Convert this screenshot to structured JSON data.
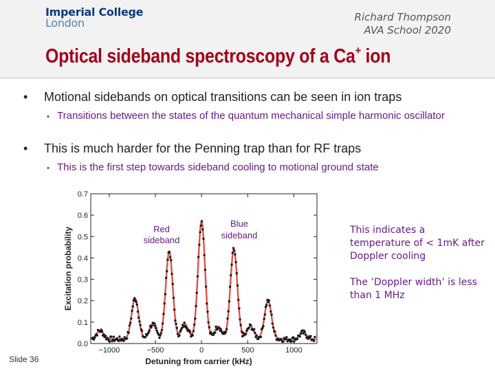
{
  "header": {
    "logo_line1": "Imperial College",
    "logo_line2": "London",
    "author": "Richard Thompson",
    "event": "AVA School 2020",
    "title_main": "Optical sideband spectroscopy of a Ca",
    "title_sup": "+",
    "title_end": " ion"
  },
  "bullets": [
    {
      "text": "Motional sidebands on optical transitions can be seen in ion traps",
      "sub": "Transitions between the states of the quantum mechanical simple harmonic oscillator"
    },
    {
      "text": "This is much harder for the Penning trap than for RF traps",
      "sub": "This is the first step towards sideband cooling to motional ground state"
    }
  ],
  "notes": {
    "temperature": "This indicates a temperature of < 1mK after Doppler cooling",
    "doppler": "The ‘Doppler width’ is less than 1 MHz"
  },
  "chart_data": {
    "type": "scatter",
    "xlabel": "Detuning from carrier (kHz)",
    "ylabel": "Excitation probability",
    "xlim": [
      -1200,
      1250
    ],
    "ylim": [
      0,
      0.7
    ],
    "xticks": [
      "−1000",
      "−500",
      "0",
      "500",
      "1000"
    ],
    "yticks": [
      "0.0",
      "0.1",
      "0.2",
      "0.3",
      "0.4",
      "0.5",
      "0.6",
      "0.7"
    ],
    "annotations": [
      "Red sideband",
      "Blue sideband"
    ],
    "peaks": [
      {
        "x": -1100,
        "y": 0.06
      },
      {
        "x": -720,
        "y": 0.21
      },
      {
        "x": -530,
        "y": 0.09
      },
      {
        "x": -350,
        "y": 0.43
      },
      {
        "x": -180,
        "y": 0.09
      },
      {
        "x": 0,
        "y": 0.57
      },
      {
        "x": 180,
        "y": 0.08
      },
      {
        "x": 350,
        "y": 0.44
      },
      {
        "x": 530,
        "y": 0.08
      },
      {
        "x": 720,
        "y": 0.2
      },
      {
        "x": 1100,
        "y": 0.05
      }
    ],
    "baseline": 0.02,
    "peak_width_khz": 38,
    "colors": {
      "fit": "#e0504a",
      "points": "#1a1a1a"
    }
  },
  "footer": {
    "slide": "Slide 36"
  }
}
